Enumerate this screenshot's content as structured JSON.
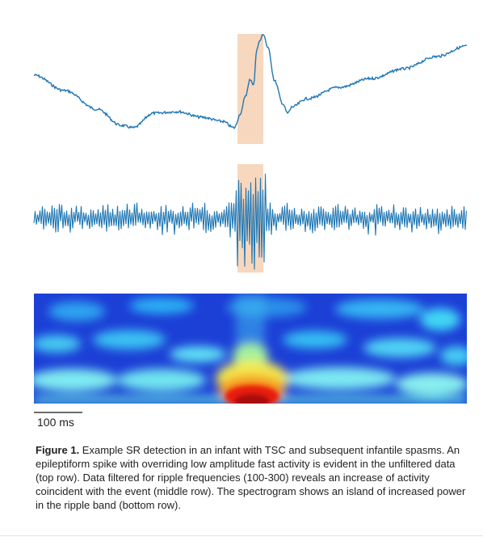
{
  "scale_bar": {
    "label": "100 ms"
  },
  "caption": {
    "label": "Figure 1.",
    "text": " Example SR detection in an infant with TSC and subsequent infantile spasms. An epileptiform spike with overriding low amplitude fast activity is evident in the unfiltered data (top row). Data filtered for ripple frequencies (100-300) reveals an increase of activity coincident with the event (middle row). The spectrogram shows an island of increased power in the ripple band (bottom row)."
  },
  "colors": {
    "trace": "#1f77b4",
    "highlight": "#f7d7bd",
    "spectrogram_background": "#1c3fd6"
  }
}
